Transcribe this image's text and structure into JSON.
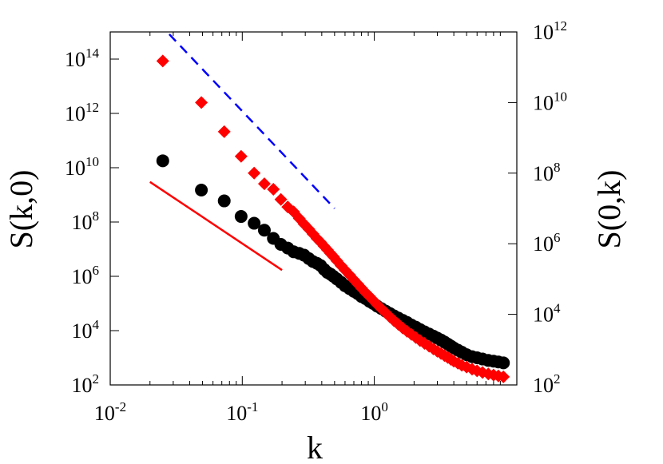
{
  "chart_data": {
    "type": "scatter",
    "xlabel": "k",
    "ylabel_left": "S(k,0)",
    "ylabel_right": "S(0,k)",
    "x_scale": "log",
    "y_scale": "log",
    "xlim": [
      0.01,
      12
    ],
    "ylim_left": [
      100,
      1000000000000000.0
    ],
    "ylim_right": [
      100,
      1000000000000.0
    ],
    "x_ticks": [
      {
        "value": 0.01,
        "base": "10",
        "exp": "-2"
      },
      {
        "value": 0.1,
        "base": "10",
        "exp": "-1"
      },
      {
        "value": 1,
        "base": "10",
        "exp": "0"
      }
    ],
    "y_ticks_left": [
      {
        "value": 100.0,
        "base": "10",
        "exp": "2"
      },
      {
        "value": 10000.0,
        "base": "10",
        "exp": "4"
      },
      {
        "value": 1000000.0,
        "base": "10",
        "exp": "6"
      },
      {
        "value": 100000000.0,
        "base": "10",
        "exp": "8"
      },
      {
        "value": 10000000000.0,
        "base": "10",
        "exp": "10"
      },
      {
        "value": 1000000000000.0,
        "base": "10",
        "exp": "12"
      },
      {
        "value": 100000000000000.0,
        "base": "10",
        "exp": "14"
      }
    ],
    "y_ticks_right": [
      {
        "value": 100.0,
        "base": "10",
        "exp": "2"
      },
      {
        "value": 10000.0,
        "base": "10",
        "exp": "4"
      },
      {
        "value": 1000000.0,
        "base": "10",
        "exp": "6"
      },
      {
        "value": 100000000.0,
        "base": "10",
        "exp": "8"
      },
      {
        "value": 10000000000.0,
        "base": "10",
        "exp": "10"
      },
      {
        "value": 1000000000000.0,
        "base": "10",
        "exp": "12"
      }
    ],
    "series": [
      {
        "marker": "circle",
        "color": "#000000",
        "axis": "left",
        "x": [
          0.025,
          0.049,
          0.073,
          0.098,
          0.123,
          0.147,
          0.172,
          0.196,
          0.221,
          0.245,
          0.27,
          0.294,
          0.319,
          0.343,
          0.368,
          0.392,
          0.417,
          0.441,
          0.466,
          0.49,
          0.52,
          0.56,
          0.6,
          0.65,
          0.7,
          0.75,
          0.8,
          0.86,
          0.92,
          0.98,
          1.05,
          1.13,
          1.22,
          1.31,
          1.41,
          1.52,
          1.64,
          1.77,
          1.91,
          2.06,
          2.22,
          2.4,
          2.6,
          2.8,
          3.0,
          3.2,
          3.4,
          3.6,
          3.8,
          4.0,
          4.3,
          4.6,
          5.0,
          5.5,
          6.0,
          6.6,
          7.3,
          8.0,
          8.7,
          9.5
        ],
        "y": [
          18000000000.0,
          1500000000.0,
          600000000.0,
          160000000.0,
          90000000.0,
          50000000.0,
          25000000.0,
          15000000.0,
          11000000.0,
          8000000.0,
          7000000.0,
          6000000.0,
          4500000.0,
          3500000.0,
          3000000.0,
          2500000.0,
          1800000.0,
          1400000.0,
          1200000.0,
          1000000.0,
          800000.0,
          600000.0,
          450000.0,
          350000.0,
          280000.0,
          230000.0,
          180000.0,
          150000.0,
          120000.0,
          100000.0,
          80000.0,
          65000.0,
          52000.0,
          43000.0,
          35000.0,
          29000.0,
          24000.0,
          20000.0,
          16000.0,
          13500.0,
          11000.0,
          9000.0,
          7500.0,
          6300.0,
          5300.0,
          4500.0,
          3800.0,
          3200.0,
          2700.0,
          2300.0,
          1900.0,
          1600.0,
          1300.0,
          1100.0,
          1000.0,
          900.0,
          800.0,
          750.0,
          700.0,
          650.0
        ]
      },
      {
        "marker": "diamond",
        "color": "#ff0000",
        "axis": "right",
        "x": [
          0.025,
          0.049,
          0.073,
          0.098,
          0.123,
          0.147,
          0.172,
          0.196,
          0.221,
          0.245,
          0.27,
          0.294,
          0.319,
          0.343,
          0.368,
          0.392,
          0.417,
          0.441,
          0.466,
          0.49,
          0.52,
          0.56,
          0.6,
          0.65,
          0.7,
          0.75,
          0.8,
          0.86,
          0.92,
          0.98,
          1.05,
          1.13,
          1.22,
          1.31,
          1.41,
          1.52,
          1.64,
          1.77,
          1.91,
          2.06,
          2.22,
          2.4,
          2.6,
          2.8,
          3.0,
          3.2,
          3.4,
          3.6,
          3.8,
          4.0,
          4.3,
          4.6,
          5.0,
          5.5,
          6.0,
          6.6,
          7.3,
          8.0,
          8.7,
          9.5
        ],
        "y": [
          150000000000.0,
          10000000000.0,
          1500000000.0,
          300000000.0,
          100000000.0,
          50000000.0,
          35000000.0,
          18000000.0,
          11000000.0,
          8000000.0,
          5200000.0,
          3600000.0,
          2600000.0,
          1900000.0,
          1400000.0,
          1100000.0,
          850000.0,
          670000.0,
          530000.0,
          430000.0,
          330000.0,
          240000.0,
          180000.0,
          130000.0,
          95000.0,
          72000.0,
          55000.0,
          41000.0,
          32000.0,
          25000.0,
          19000.0,
          14500.0,
          11000.0,
          8500.0,
          6600.0,
          5200.0,
          4100.0,
          3300.0,
          2700.0,
          2200.0,
          1800.0,
          1500.0,
          1250.0,
          1050.0,
          900.0,
          780.0,
          680.0,
          600.0,
          530.0,
          470.0,
          410.0,
          360.0,
          320.0,
          280.0,
          250.0,
          225.0,
          205.0,
          190.0,
          180.0,
          170.0
        ]
      }
    ],
    "lines": [
      {
        "style": "solid",
        "color": "#ff0000",
        "axis": "left",
        "x": [
          0.02,
          0.2
        ],
        "y": [
          3000000000.0,
          1700000.0
        ]
      },
      {
        "style": "dashed",
        "color": "#0000ff",
        "axis": "right",
        "x": [
          0.028,
          0.5
        ],
        "y": [
          860000000000.0,
          10000000.0
        ]
      }
    ]
  }
}
